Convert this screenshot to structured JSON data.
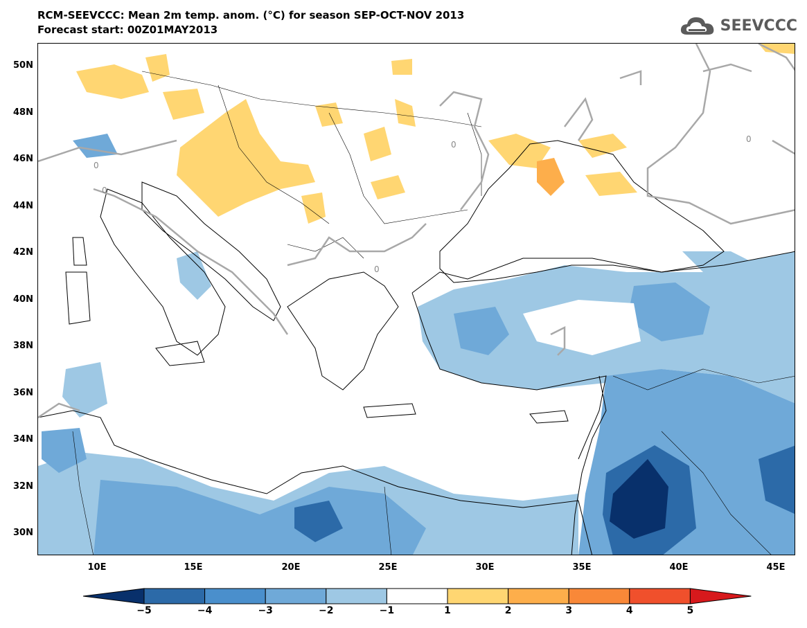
{
  "title": {
    "line1": "RCM-SEEVCCC: Mean 2m temp. anom. (°C) for season SEP-OCT-NOV 2013",
    "line2": "Forecast start: 00Z01MAY2013"
  },
  "logo": {
    "text": "SEEVCCC",
    "icon": "cloud-logo-icon",
    "color": "#5b5b5b"
  },
  "axes": {
    "lat_labels": [
      "50N",
      "48N",
      "46N",
      "44N",
      "42N",
      "40N",
      "38N",
      "36N",
      "34N",
      "32N",
      "30N"
    ],
    "lon_labels": [
      "10E",
      "15E",
      "20E",
      "25E",
      "30E",
      "35E",
      "40E",
      "45E"
    ]
  },
  "contour_labels": [
    "0",
    "0",
    "0",
    "0",
    "0"
  ],
  "colorbar": {
    "labels": [
      "−5",
      "−4",
      "−3",
      "−2",
      "−1",
      "1",
      "2",
      "3",
      "4",
      "5"
    ],
    "colors": [
      "#08306b",
      "#2c6aa8",
      "#4a8fcc",
      "#6fa9d8",
      "#9ec8e4",
      "#ffffff",
      "#ffd672",
      "#fdae4b",
      "#f98838",
      "#f0502c",
      "#d7191c"
    ]
  },
  "chart_data": {
    "type": "heatmap",
    "title": "RCM-SEEVCCC: Mean 2m temp. anom. (°C) for season SEP-OCT-NOV 2013",
    "subtitle": "Forecast start: 00Z01MAY2013",
    "lon_range": [
      7,
      46
    ],
    "lat_range": [
      29,
      51
    ],
    "levels": [
      -5,
      -4,
      -3,
      -2,
      -1,
      1,
      2,
      3,
      4,
      5
    ],
    "contour_line_value": 0
  }
}
